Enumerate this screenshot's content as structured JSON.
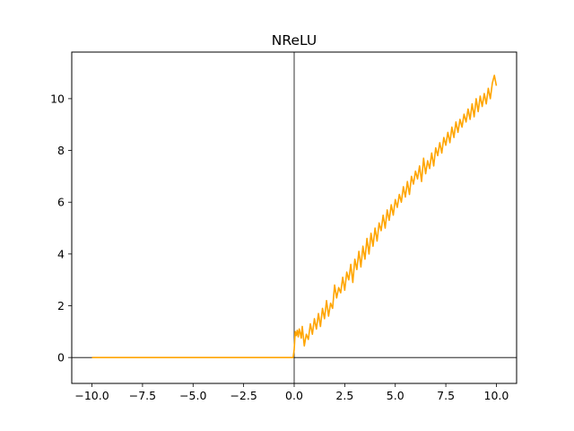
{
  "chart_data": {
    "type": "line",
    "title": "NReLU",
    "xlabel": "",
    "ylabel": "",
    "xlim": [
      -11.0,
      11.0
    ],
    "ylim": [
      -1.0,
      11.8
    ],
    "x_ticks": [
      {
        "value": -10.0,
        "label": "−10.0"
      },
      {
        "value": -7.5,
        "label": "−7.5"
      },
      {
        "value": -5.0,
        "label": "−5.0"
      },
      {
        "value": -2.5,
        "label": "−2.5"
      },
      {
        "value": 0.0,
        "label": "0.0"
      },
      {
        "value": 2.5,
        "label": "2.5"
      },
      {
        "value": 5.0,
        "label": "5.0"
      },
      {
        "value": 7.5,
        "label": "7.5"
      },
      {
        "value": 10.0,
        "label": "10.0"
      }
    ],
    "y_ticks": [
      {
        "value": 0,
        "label": "0"
      },
      {
        "value": 2,
        "label": "2"
      },
      {
        "value": 4,
        "label": "4"
      },
      {
        "value": 6,
        "label": "6"
      },
      {
        "value": 8,
        "label": "8"
      },
      {
        "value": 10,
        "label": "10"
      }
    ],
    "grid": false,
    "reference_lines": {
      "x": 0,
      "y": 0,
      "color": "#000000"
    },
    "series": [
      {
        "color": "#ffa500",
        "x": [
          -10.0,
          -5.0,
          -0.05,
          0.0,
          0.05,
          0.1,
          0.15,
          0.2,
          0.25,
          0.3,
          0.35,
          0.4,
          0.5,
          0.6,
          0.7,
          0.8,
          0.9,
          1.0,
          1.1,
          1.2,
          1.3,
          1.4,
          1.5,
          1.6,
          1.7,
          1.8,
          1.9,
          2.0,
          2.1,
          2.2,
          2.3,
          2.4,
          2.5,
          2.6,
          2.7,
          2.8,
          2.9,
          3.0,
          3.1,
          3.2,
          3.3,
          3.4,
          3.5,
          3.6,
          3.7,
          3.8,
          3.9,
          4.0,
          4.1,
          4.2,
          4.3,
          4.4,
          4.5,
          4.6,
          4.7,
          4.8,
          4.9,
          5.0,
          5.1,
          5.2,
          5.3,
          5.4,
          5.5,
          5.6,
          5.7,
          5.8,
          5.9,
          6.0,
          6.1,
          6.2,
          6.3,
          6.4,
          6.5,
          6.6,
          6.7,
          6.8,
          6.9,
          7.0,
          7.1,
          7.2,
          7.3,
          7.4,
          7.5,
          7.6,
          7.7,
          7.8,
          7.9,
          8.0,
          8.1,
          8.2,
          8.3,
          8.4,
          8.5,
          8.6,
          8.7,
          8.8,
          8.9,
          9.0,
          9.1,
          9.2,
          9.3,
          9.4,
          9.5,
          9.6,
          9.7,
          9.8,
          9.9,
          10.0
        ],
        "y": [
          0,
          0,
          0,
          0.3,
          1.0,
          0.85,
          1.05,
          0.8,
          1.1,
          0.95,
          0.75,
          1.2,
          0.45,
          0.9,
          0.7,
          1.3,
          0.9,
          1.5,
          1.1,
          1.7,
          1.2,
          1.9,
          1.5,
          2.2,
          1.6,
          2.1,
          1.9,
          2.8,
          2.3,
          2.7,
          2.5,
          3.1,
          2.6,
          3.3,
          3.0,
          3.6,
          2.9,
          3.8,
          3.4,
          4.1,
          3.5,
          4.3,
          3.8,
          4.6,
          4.0,
          4.8,
          4.3,
          5.0,
          4.5,
          5.2,
          4.9,
          5.5,
          5.0,
          5.7,
          5.3,
          5.9,
          5.5,
          6.1,
          5.8,
          6.3,
          6.0,
          6.6,
          6.2,
          6.8,
          6.3,
          7.0,
          6.7,
          7.2,
          6.9,
          7.4,
          6.8,
          7.7,
          7.1,
          7.6,
          7.3,
          7.9,
          7.4,
          8.1,
          7.8,
          8.3,
          7.9,
          8.5,
          8.2,
          8.7,
          8.3,
          8.9,
          8.5,
          9.1,
          8.7,
          9.2,
          8.9,
          9.4,
          9.1,
          9.6,
          9.2,
          9.8,
          9.3,
          10.0,
          9.5,
          10.1,
          9.7,
          10.2,
          9.8,
          10.4,
          10.0,
          10.6,
          10.9,
          10.5
        ]
      }
    ]
  }
}
